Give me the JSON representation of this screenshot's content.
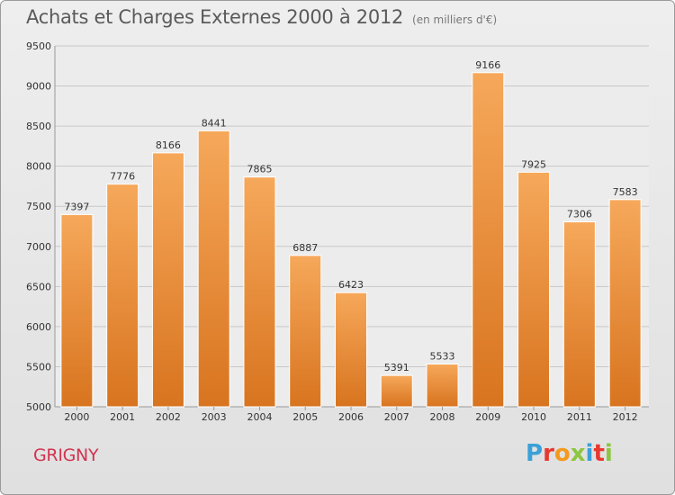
{
  "title": "Achats et Charges Externes 2000 à 2012",
  "unit_note": "(en milliers d'€)",
  "commune": "GRIGNY",
  "logo": {
    "text": "Proxiti",
    "letter_colors": [
      "#3aa0d8",
      "#e8382f",
      "#f39a1e",
      "#8cc63f",
      "#3aa0d8",
      "#e8382f",
      "#8cc63f"
    ]
  },
  "colors": {
    "bar_top": "#f6a85a",
    "bar_bottom": "#d8741f",
    "grid": "#c8c8c8",
    "axis_text": "#333333",
    "label_text": "#333333"
  },
  "chart_data": {
    "type": "bar",
    "title": "Achats et Charges Externes 2000 à 2012",
    "categories": [
      "2000",
      "2001",
      "2002",
      "2003",
      "2004",
      "2005",
      "2006",
      "2007",
      "2008",
      "2009",
      "2010",
      "2011",
      "2012"
    ],
    "values": [
      7397,
      7776,
      8166,
      8441,
      7865,
      6887,
      6423,
      5391,
      5533,
      9166,
      7925,
      7306,
      7583
    ],
    "ylim": [
      5000,
      9500
    ],
    "yticks": [
      5000,
      5500,
      6000,
      6500,
      7000,
      7500,
      8000,
      8500,
      9000,
      9500
    ],
    "xlabel": "",
    "ylabel": "",
    "grid": true,
    "legend": "none"
  }
}
